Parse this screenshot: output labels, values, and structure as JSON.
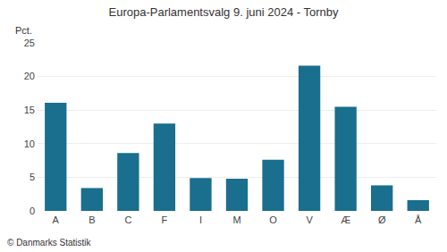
{
  "chart_data": {
    "type": "bar",
    "title": "Europa-Parlamentsvalg 9. juni 2024 - Tornby",
    "ylabel": "Pct.",
    "annotations": [
      "© Danmarks Statistik"
    ],
    "categories": [
      "A",
      "B",
      "C",
      "F",
      "I",
      "M",
      "O",
      "V",
      "Æ",
      "Ø",
      "Å"
    ],
    "values": [
      16.1,
      3.4,
      8.6,
      13.0,
      4.9,
      4.8,
      7.6,
      21.6,
      15.5,
      3.8,
      1.6
    ],
    "color": "#1a6e8e",
    "ylim": [
      0,
      25
    ],
    "yticks": [
      0,
      5,
      10,
      15,
      20,
      25
    ],
    "grid": true
  }
}
